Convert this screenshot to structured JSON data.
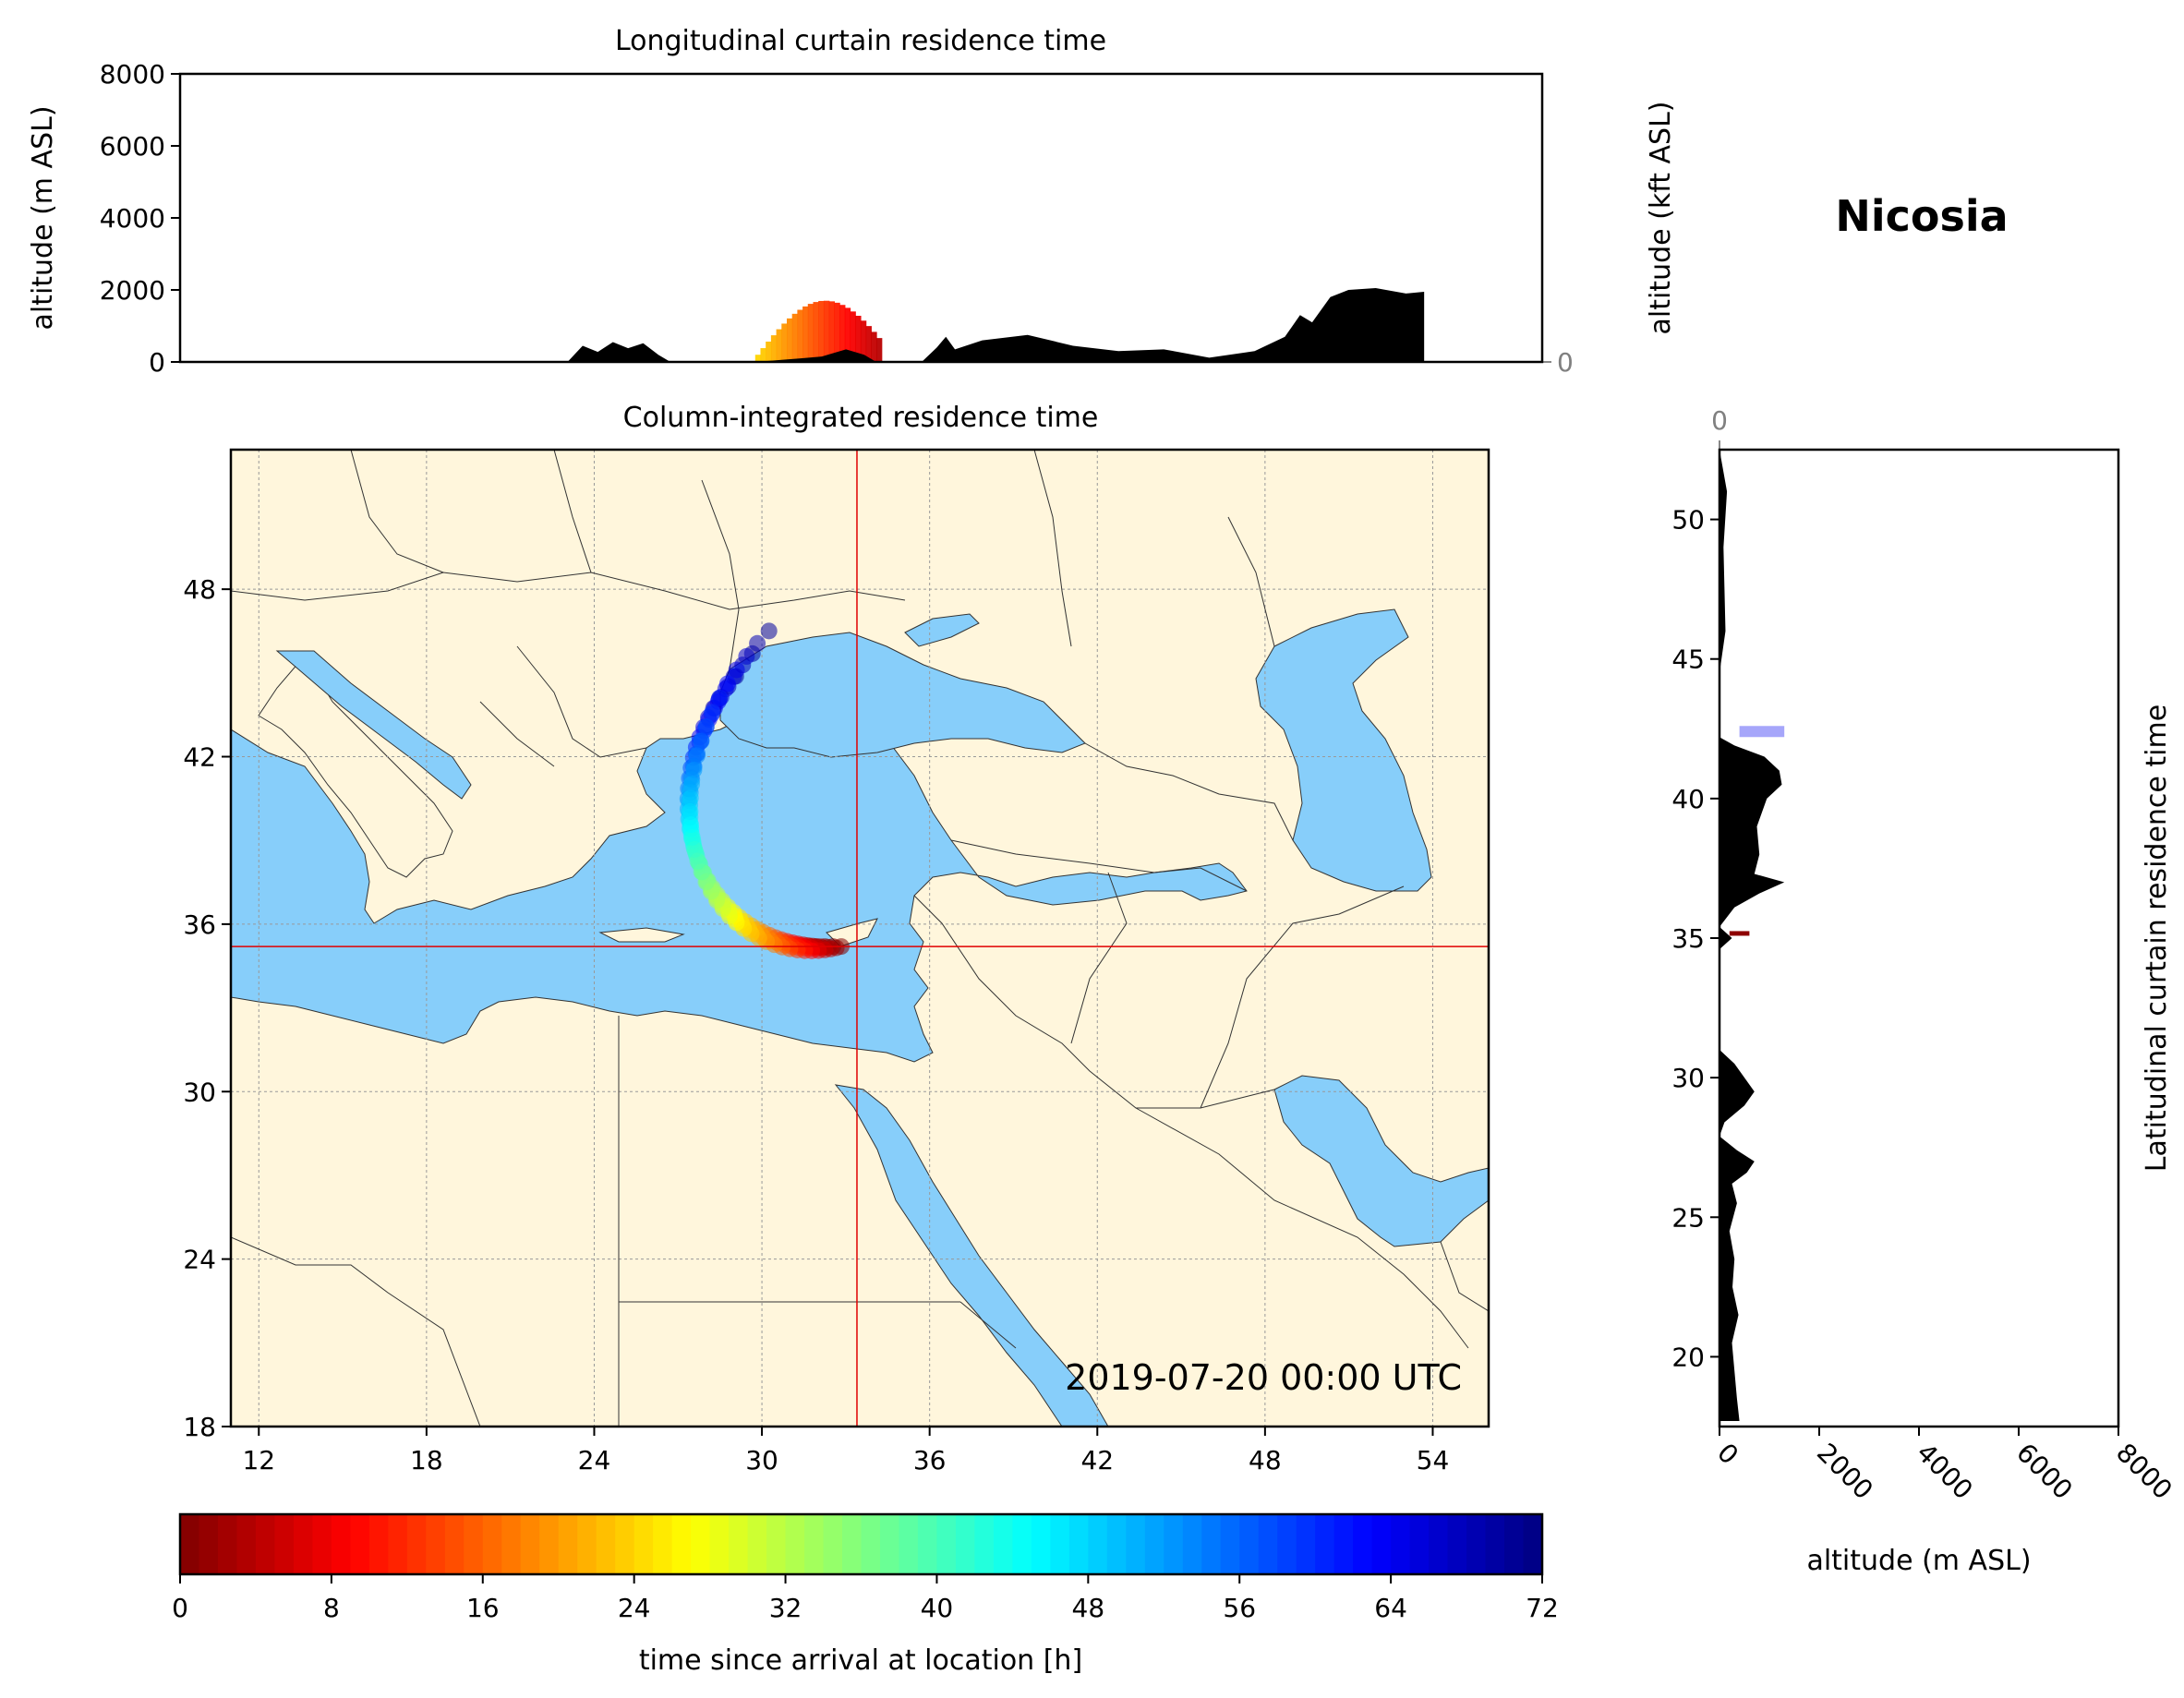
{
  "location_title": "Nicosia",
  "timestamp": "2019-07-20 00:00 UTC",
  "colors": {
    "sea": "#87cefa",
    "land": "#fff6dc",
    "terrain": "#000000",
    "crosshair": "#e00000",
    "borders": "#333333"
  },
  "chart_data": [
    {
      "type": "area",
      "panel": "longitudinal-curtain",
      "title": "Longitudinal curtain residence time",
      "xlabel": "",
      "ylabel": "altitude (m ASL)",
      "ylabel_right": "altitude (kft ASL)",
      "xlim": [
        10,
        55
      ],
      "ylim": [
        0,
        8000
      ],
      "yticks": [
        0,
        2000,
        4000,
        6000,
        8000
      ],
      "yticks_right": [
        0,
        50,
        100
      ],
      "grid": true,
      "terrain_series": {
        "name": "",
        "x": [
          22.8,
          23.3,
          23.8,
          24.3,
          24.8,
          25.3,
          25.8,
          26.2,
          29.0,
          30.5,
          31.2,
          32.0,
          32.6,
          33.0,
          33.6,
          34.5,
          35.0,
          35.3,
          35.6,
          36.5,
          38.0,
          39.5,
          41.0,
          42.5,
          44.0,
          45.5,
          46.5,
          47.0,
          47.4,
          48.0,
          48.6,
          49.5,
          50.5,
          51.1
        ],
        "values": [
          0,
          450,
          280,
          550,
          380,
          520,
          200,
          0,
          0,
          100,
          150,
          350,
          200,
          0,
          0,
          0,
          400,
          700,
          350,
          600,
          750,
          450,
          300,
          350,
          120,
          300,
          700,
          1300,
          1100,
          1800,
          2000,
          2050,
          1900,
          1950
        ]
      },
      "plume_time_h": {
        "x_range": [
          29.0,
          33.0
        ],
        "alt_range_m": [
          0,
          1500
        ],
        "time_h_range": [
          4,
          24
        ]
      }
    },
    {
      "type": "heatmap",
      "panel": "column-integrated-map",
      "title": "Column-integrated residence time",
      "xlim": [
        11,
        56
      ],
      "ylim": [
        18,
        53
      ],
      "xticks": [
        12,
        18,
        24,
        30,
        36,
        42,
        48,
        54
      ],
      "yticks": [
        18,
        24,
        30,
        36,
        42,
        48
      ],
      "crosshair": {
        "lon": 33.4,
        "lat": 35.2
      },
      "grid": true
    },
    {
      "type": "area",
      "panel": "latitudinal-curtain",
      "title": "Latitudinal curtain residence time",
      "xlabel": "altitude (m ASL)",
      "ylabel": "",
      "xlim": [
        0,
        8000
      ],
      "ylim": [
        17.5,
        52.5
      ],
      "xticks": [
        0,
        2000,
        4000,
        6000,
        8000
      ],
      "xticks_top": [
        0,
        50,
        100
      ],
      "yticks": [
        20,
        25,
        30,
        35,
        40,
        45,
        50
      ],
      "grid": true,
      "terrain_series": {
        "name": "",
        "lat": [
          17.7,
          18.5,
          19.5,
          20.5,
          21.5,
          22.5,
          23.5,
          24.5,
          25.5,
          26.2,
          26.6,
          27.0,
          27.4,
          27.9,
          28.4,
          29.0,
          29.5,
          30.0,
          30.5,
          31.0,
          34.6,
          35.0,
          35.4,
          36.1,
          36.6,
          37.0,
          37.3,
          38.0,
          39.0,
          40.0,
          40.5,
          41.0,
          41.5,
          41.9,
          42.2
        ],
        "values": [
          400,
          350,
          300,
          250,
          380,
          260,
          300,
          200,
          350,
          250,
          550,
          700,
          350,
          0,
          100,
          500,
          700,
          500,
          300,
          0,
          0,
          250,
          0,
          300,
          800,
          1300,
          700,
          800,
          750,
          950,
          1250,
          1200,
          900,
          300,
          0
        ]
      },
      "plume_time_h": {
        "lat_range": [
          35.1,
          42.5
        ],
        "time_h_range": [
          0,
          64
        ]
      }
    },
    {
      "type": "colorbar",
      "panel": "colorbar",
      "colormap": "jet_r",
      "label": "time since arrival at location [h]",
      "range": [
        0,
        72
      ],
      "ticks": [
        0,
        8,
        16,
        24,
        32,
        40,
        48,
        56,
        64,
        72
      ]
    }
  ]
}
